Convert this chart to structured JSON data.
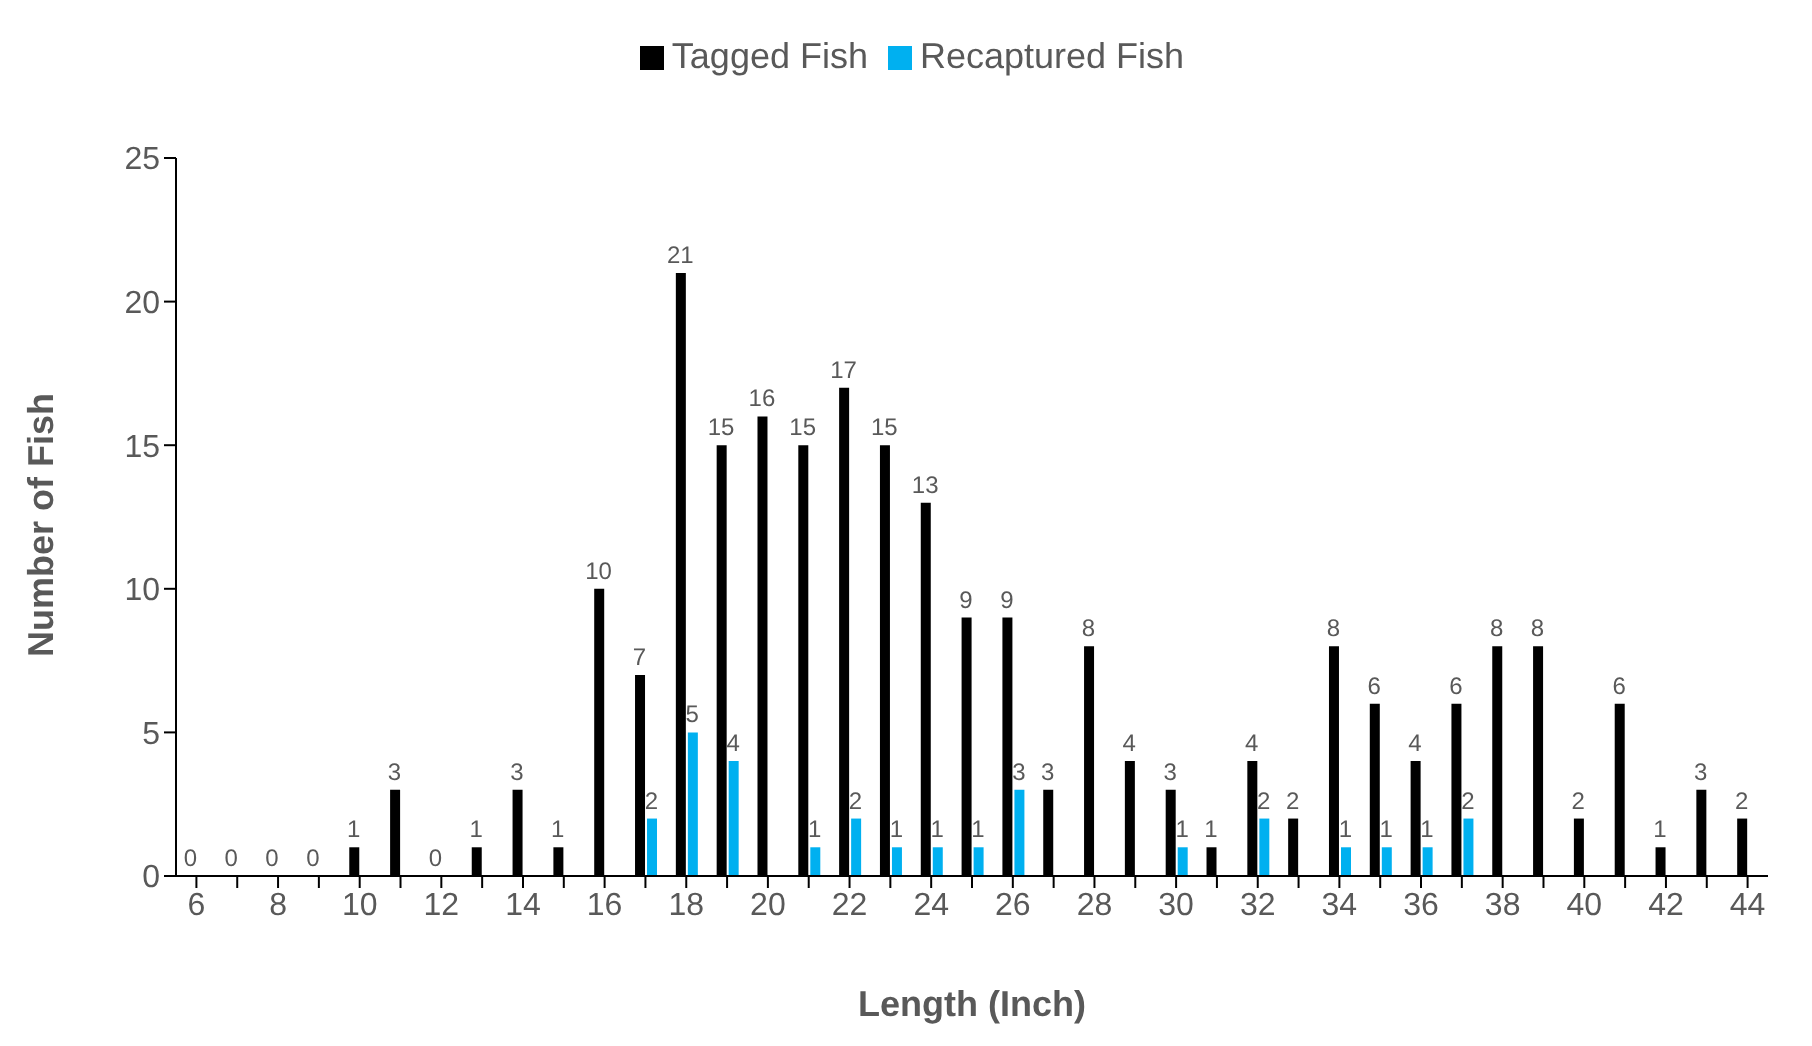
{
  "chart_data": {
    "type": "bar",
    "xlabel": "Length (Inch)",
    "ylabel": "Number of Fish",
    "categories": [
      "6",
      null,
      "8",
      null,
      "10",
      null,
      "12",
      null,
      "14",
      null,
      "16",
      null,
      "18",
      null,
      "20",
      null,
      "22",
      null,
      "24",
      null,
      "26",
      null,
      "28",
      null,
      "30",
      null,
      "32",
      null,
      "34",
      null,
      "36",
      null,
      "38",
      null,
      "40",
      null,
      "42",
      null,
      "44"
    ],
    "series": [
      {
        "name": "Tagged Fish",
        "color": "#000000",
        "values": [
          0,
          0,
          0,
          0,
          1,
          3,
          0,
          1,
          3,
          1,
          10,
          7,
          21,
          15,
          16,
          15,
          17,
          15,
          13,
          9,
          9,
          3,
          8,
          4,
          3,
          1,
          4,
          2,
          8,
          6,
          4,
          6,
          8,
          8,
          2,
          6,
          1,
          3,
          2
        ],
        "value_labels": [
          "0",
          "0",
          "0",
          "0",
          "1",
          "3",
          "0",
          "1",
          "3",
          "1",
          "10",
          "7",
          "21",
          "15",
          "16",
          "15",
          "17",
          "15",
          "13",
          "9",
          "9",
          "3",
          "8",
          "4",
          "3",
          "1",
          "4",
          "2",
          "8",
          "6",
          "4",
          "6",
          "8",
          "8",
          "2",
          "6",
          "1",
          "3",
          "2"
        ]
      },
      {
        "name": "Recaptured Fish",
        "color": "#00b0f0",
        "values": [
          0,
          0,
          0,
          0,
          0,
          0,
          0,
          0,
          0,
          0,
          0,
          2,
          5,
          4,
          0,
          1,
          2,
          1,
          1,
          1,
          3,
          0,
          0,
          0,
          1,
          0,
          2,
          0,
          1,
          1,
          1,
          2,
          0,
          0,
          0,
          0,
          0,
          0,
          0
        ],
        "value_labels": [
          null,
          null,
          null,
          null,
          null,
          null,
          null,
          null,
          null,
          null,
          null,
          "2",
          "5",
          "4",
          null,
          "1",
          "2",
          "1",
          "1",
          "1",
          "3",
          null,
          null,
          null,
          "1",
          null,
          "2",
          null,
          "1",
          "1",
          "1",
          "2",
          null,
          null,
          null,
          null,
          null,
          null,
          null
        ]
      }
    ],
    "ylim": [
      0,
      25
    ],
    "yticks": [
      0,
      5,
      10,
      15,
      20,
      25
    ],
    "grid": false,
    "legend": "top"
  }
}
